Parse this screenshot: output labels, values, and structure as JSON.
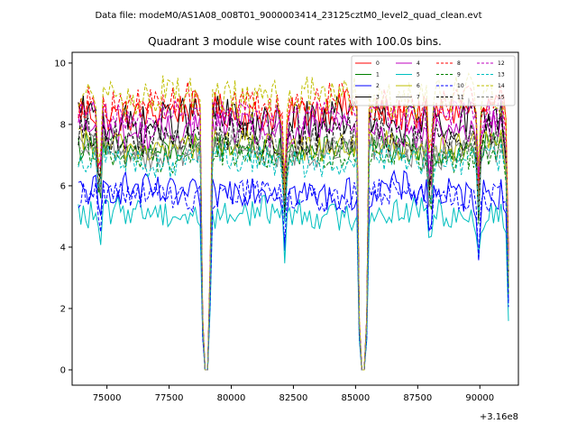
{
  "figure": {
    "suptitle": "Data file: modeM0/AS1A08_008T01_9000003414_23125cztM0_level2_quad_clean.evt"
  },
  "chart_data": {
    "type": "line",
    "title": "Quadrant 3 module wise count rates with 100.0s bins.",
    "xlabel": "",
    "ylabel": "",
    "x_offset_label": "+3.16e8",
    "xlim": [
      73600,
      91550
    ],
    "ylim": [
      -0.5,
      10.35
    ],
    "x_ticks": [
      75000,
      77500,
      80000,
      82500,
      85000,
      87500,
      90000
    ],
    "x_tick_labels": [
      "75000",
      "77500",
      "80000",
      "82500",
      "85000",
      "87500",
      "90000"
    ],
    "y_ticks": [
      0,
      2,
      4,
      6,
      8,
      10
    ],
    "y_tick_labels": [
      "0",
      "2",
      "4",
      "6",
      "8",
      "10"
    ],
    "x_range_data": [
      73850,
      91150
    ],
    "bin_size_s": 100,
    "gaps": [
      [
        78900,
        79050
      ],
      [
        85200,
        85400
      ]
    ],
    "legend": {
      "position": "top-right",
      "columns": 4,
      "entries": [
        "0",
        "1",
        "2",
        "3",
        "4",
        "5",
        "6",
        "7",
        "8",
        "9",
        "10",
        "11",
        "12",
        "13",
        "14",
        "15"
      ]
    },
    "series": [
      {
        "name": "0",
        "color": "#ff0000",
        "dash": "solid",
        "mean": 8.4,
        "amp": 0.35
      },
      {
        "name": "1",
        "color": "#008000",
        "dash": "solid",
        "mean": 7.2,
        "amp": 0.3
      },
      {
        "name": "2",
        "color": "#0000ff",
        "dash": "solid",
        "mean": 5.8,
        "amp": 0.35
      },
      {
        "name": "3",
        "color": "#000000",
        "dash": "solid",
        "mean": 8.1,
        "amp": 0.45
      },
      {
        "name": "4",
        "color": "#bf00bf",
        "dash": "solid",
        "mean": 7.8,
        "amp": 0.35
      },
      {
        "name": "5",
        "color": "#00bfbf",
        "dash": "solid",
        "mean": 5.1,
        "amp": 0.3
      },
      {
        "name": "6",
        "color": "#bfbf00",
        "dash": "solid",
        "mean": 7.3,
        "amp": 0.3
      },
      {
        "name": "7",
        "color": "#808080",
        "dash": "solid",
        "mean": 7.1,
        "amp": 0.3
      },
      {
        "name": "8",
        "color": "#ff0000",
        "dash": "dashed",
        "mean": 8.7,
        "amp": 0.35
      },
      {
        "name": "9",
        "color": "#008000",
        "dash": "dashed",
        "mean": 7.0,
        "amp": 0.3
      },
      {
        "name": "10",
        "color": "#0000ff",
        "dash": "dashed",
        "mean": 5.7,
        "amp": 0.3
      },
      {
        "name": "11",
        "color": "#000000",
        "dash": "dashed",
        "mean": 7.6,
        "amp": 0.35
      },
      {
        "name": "12",
        "color": "#bf00bf",
        "dash": "dashed",
        "mean": 8.3,
        "amp": 0.3
      },
      {
        "name": "13",
        "color": "#00bfbf",
        "dash": "dashed",
        "mean": 6.8,
        "amp": 0.3
      },
      {
        "name": "14",
        "color": "#bfbf00",
        "dash": "dashed",
        "mean": 8.9,
        "amp": 0.4
      },
      {
        "name": "15",
        "color": "#808080",
        "dash": "dashed",
        "mean": 7.4,
        "amp": 0.3
      }
    ]
  }
}
